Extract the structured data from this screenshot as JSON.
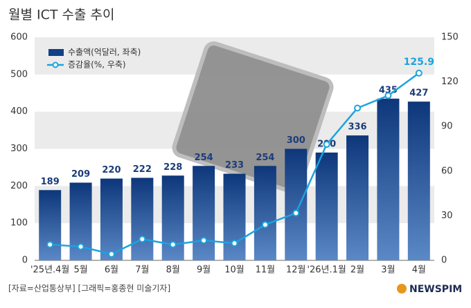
{
  "chart_data": {
    "type": "bar-line",
    "title": "월별 ICT 수출 추이",
    "source": "[자료=산업통상부] [그래픽=홍종현 미술기자]",
    "logo": "NEWSPIM",
    "categories": [
      "'25년.4월",
      "5월",
      "6월",
      "7월",
      "8월",
      "9월",
      "10월",
      "11월",
      "12월",
      "'26년.1월",
      "2월",
      "3월",
      "4월"
    ],
    "series": [
      {
        "name": "수출액(억달러, 좌축)",
        "color": "#123f86",
        "values": [
          189,
          209,
          220,
          222,
          228,
          254,
          233,
          254,
          300,
          290,
          336,
          435,
          427
        ]
      },
      {
        "name": "증감율(%, 우축)",
        "color": "#1ba3de",
        "axis": "y2",
        "values": [
          10.6,
          9.2,
          4.2,
          14.3,
          10.6,
          13.4,
          11.5,
          24,
          31.8,
          78,
          102.4,
          110.8,
          125.9
        ]
      }
    ],
    "ylim": [
      0,
      600
    ],
    "yticks": [
      0,
      100,
      200,
      300,
      400,
      500,
      600
    ],
    "y2lim": [
      0,
      150
    ],
    "y2ticks": [
      0,
      30,
      60,
      90,
      120,
      150
    ],
    "legend": "top-left"
  }
}
